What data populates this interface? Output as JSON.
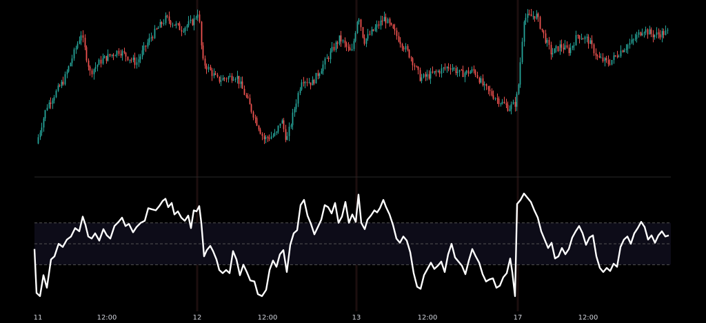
{
  "chart_data": [
    {
      "type": "candlestick",
      "pane": "price",
      "title": "",
      "y_axis": "hidden",
      "colors": {
        "up": "#26a69a",
        "down": "#ef5350",
        "background": "#000000"
      },
      "session_separators": [
        "12",
        "13",
        "17"
      ],
      "anchors": [
        [
          55,
          0.14
        ],
        [
          70,
          0.38
        ],
        [
          95,
          0.55
        ],
        [
          120,
          0.85
        ],
        [
          133,
          0.6
        ],
        [
          150,
          0.68
        ],
        [
          175,
          0.74
        ],
        [
          200,
          0.66
        ],
        [
          220,
          0.82
        ],
        [
          243,
          0.95
        ],
        [
          265,
          0.88
        ],
        [
          283,
          0.93
        ],
        [
          290,
          1.0
        ],
        [
          296,
          0.67
        ],
        [
          318,
          0.55
        ],
        [
          345,
          0.58
        ],
        [
          360,
          0.43
        ],
        [
          385,
          0.17
        ],
        [
          403,
          0.2
        ],
        [
          410,
          0.3
        ],
        [
          418,
          0.16
        ],
        [
          440,
          0.56
        ],
        [
          455,
          0.53
        ],
        [
          470,
          0.64
        ],
        [
          495,
          0.82
        ],
        [
          512,
          0.72
        ],
        [
          522,
          0.98
        ],
        [
          530,
          0.8
        ],
        [
          560,
          0.95
        ],
        [
          580,
          0.82
        ],
        [
          598,
          0.7
        ],
        [
          612,
          0.56
        ],
        [
          625,
          0.58
        ],
        [
          640,
          0.61
        ],
        [
          655,
          0.64
        ],
        [
          670,
          0.59
        ],
        [
          690,
          0.61
        ],
        [
          705,
          0.5
        ],
        [
          723,
          0.43
        ],
        [
          740,
          0.37
        ],
        [
          750,
          0.4
        ],
        [
          754,
          0.5
        ],
        [
          762,
          0.95
        ],
        [
          780,
          0.97
        ],
        [
          790,
          0.85
        ],
        [
          802,
          0.72
        ],
        [
          815,
          0.77
        ],
        [
          828,
          0.74
        ],
        [
          840,
          0.84
        ],
        [
          855,
          0.81
        ],
        [
          870,
          0.69
        ],
        [
          885,
          0.66
        ],
        [
          905,
          0.75
        ],
        [
          920,
          0.8
        ],
        [
          935,
          0.88
        ],
        [
          950,
          0.84
        ],
        [
          972,
          0.86
        ]
      ]
    },
    {
      "type": "line",
      "pane": "oscillator",
      "title": "",
      "ylim": [
        0,
        100
      ],
      "levels": [
        70,
        50,
        30
      ],
      "colors": {
        "line": "#ffffff",
        "band": "#0d0c18",
        "level": "#555555"
      },
      "points": [
        [
          50,
          45
        ],
        [
          53,
          3
        ],
        [
          58,
          0
        ],
        [
          63,
          20
        ],
        [
          68,
          8
        ],
        [
          74,
          35
        ],
        [
          79,
          38
        ],
        [
          85,
          50
        ],
        [
          91,
          47
        ],
        [
          97,
          54
        ],
        [
          103,
          57
        ],
        [
          109,
          65
        ],
        [
          115,
          62
        ],
        [
          120,
          76
        ],
        [
          124,
          68
        ],
        [
          128,
          57
        ],
        [
          133,
          55
        ],
        [
          138,
          60
        ],
        [
          144,
          53
        ],
        [
          150,
          64
        ],
        [
          155,
          58
        ],
        [
          160,
          55
        ],
        [
          166,
          67
        ],
        [
          172,
          71
        ],
        [
          177,
          75
        ],
        [
          182,
          67
        ],
        [
          187,
          69
        ],
        [
          193,
          61
        ],
        [
          198,
          66
        ],
        [
          204,
          70
        ],
        [
          210,
          72
        ],
        [
          215,
          84
        ],
        [
          220,
          83
        ],
        [
          226,
          82
        ],
        [
          231,
          86
        ],
        [
          236,
          91
        ],
        [
          240,
          93
        ],
        [
          244,
          85
        ],
        [
          249,
          89
        ],
        [
          253,
          78
        ],
        [
          258,
          81
        ],
        [
          263,
          75
        ],
        [
          268,
          72
        ],
        [
          273,
          77
        ],
        [
          277,
          65
        ],
        [
          281,
          82
        ],
        [
          285,
          81
        ],
        [
          289,
          86
        ],
        [
          292,
          70
        ],
        [
          296,
          38
        ],
        [
          300,
          44
        ],
        [
          305,
          48
        ],
        [
          309,
          43
        ],
        [
          314,
          35
        ],
        [
          318,
          25
        ],
        [
          323,
          22
        ],
        [
          328,
          25
        ],
        [
          333,
          22
        ],
        [
          338,
          43
        ],
        [
          343,
          35
        ],
        [
          348,
          20
        ],
        [
          353,
          30
        ],
        [
          358,
          23
        ],
        [
          363,
          15
        ],
        [
          369,
          14
        ],
        [
          374,
          2
        ],
        [
          380,
          0
        ],
        [
          386,
          6
        ],
        [
          391,
          25
        ],
        [
          396,
          34
        ],
        [
          401,
          28
        ],
        [
          406,
          40
        ],
        [
          411,
          44
        ],
        [
          416,
          23
        ],
        [
          421,
          49
        ],
        [
          426,
          60
        ],
        [
          431,
          63
        ],
        [
          436,
          87
        ],
        [
          441,
          92
        ],
        [
          446,
          77
        ],
        [
          451,
          69
        ],
        [
          456,
          59
        ],
        [
          461,
          66
        ],
        [
          466,
          73
        ],
        [
          471,
          87
        ],
        [
          476,
          85
        ],
        [
          481,
          79
        ],
        [
          486,
          89
        ],
        [
          491,
          70
        ],
        [
          496,
          76
        ],
        [
          501,
          90
        ],
        [
          506,
          70
        ],
        [
          511,
          78
        ],
        [
          516,
          71
        ],
        [
          520,
          97
        ],
        [
          524,
          70
        ],
        [
          529,
          64
        ],
        [
          533,
          73
        ],
        [
          538,
          77
        ],
        [
          543,
          82
        ],
        [
          547,
          80
        ],
        [
          551,
          84
        ],
        [
          556,
          92
        ],
        [
          560,
          85
        ],
        [
          565,
          78
        ],
        [
          570,
          68
        ],
        [
          575,
          55
        ],
        [
          580,
          51
        ],
        [
          585,
          57
        ],
        [
          590,
          53
        ],
        [
          595,
          42
        ],
        [
          600,
          22
        ],
        [
          605,
          9
        ],
        [
          610,
          7
        ],
        [
          615,
          20
        ],
        [
          620,
          26
        ],
        [
          625,
          32
        ],
        [
          630,
          26
        ],
        [
          635,
          29
        ],
        [
          640,
          33
        ],
        [
          645,
          23
        ],
        [
          650,
          40
        ],
        [
          655,
          50
        ],
        [
          660,
          37
        ],
        [
          665,
          33
        ],
        [
          670,
          29
        ],
        [
          675,
          21
        ],
        [
          680,
          34
        ],
        [
          685,
          45
        ],
        [
          690,
          38
        ],
        [
          695,
          32
        ],
        [
          700,
          21
        ],
        [
          705,
          14
        ],
        [
          710,
          16
        ],
        [
          715,
          17
        ],
        [
          720,
          8
        ],
        [
          725,
          10
        ],
        [
          730,
          18
        ],
        [
          735,
          22
        ],
        [
          740,
          36
        ],
        [
          743,
          23
        ],
        [
          747,
          0
        ],
        [
          750,
          88
        ],
        [
          755,
          92
        ],
        [
          760,
          98
        ],
        [
          765,
          94
        ],
        [
          770,
          90
        ],
        [
          775,
          82
        ],
        [
          780,
          75
        ],
        [
          785,
          62
        ],
        [
          790,
          54
        ],
        [
          795,
          46
        ],
        [
          800,
          51
        ],
        [
          805,
          36
        ],
        [
          810,
          38
        ],
        [
          815,
          46
        ],
        [
          820,
          40
        ],
        [
          825,
          45
        ],
        [
          830,
          56
        ],
        [
          835,
          62
        ],
        [
          840,
          67
        ],
        [
          845,
          60
        ],
        [
          850,
          49
        ],
        [
          855,
          56
        ],
        [
          860,
          58
        ],
        [
          865,
          38
        ],
        [
          870,
          27
        ],
        [
          875,
          23
        ],
        [
          880,
          27
        ],
        [
          885,
          24
        ],
        [
          890,
          31
        ],
        [
          895,
          28
        ],
        [
          900,
          47
        ],
        [
          905,
          54
        ],
        [
          910,
          57
        ],
        [
          915,
          50
        ],
        [
          920,
          60
        ],
        [
          925,
          65
        ],
        [
          930,
          71
        ],
        [
          935,
          66
        ],
        [
          940,
          54
        ],
        [
          945,
          58
        ],
        [
          950,
          51
        ],
        [
          955,
          58
        ],
        [
          960,
          62
        ],
        [
          965,
          57
        ],
        [
          970,
          58
        ]
      ]
    }
  ],
  "x_axis": {
    "ticks": [
      {
        "label": "11",
        "x": 55
      },
      {
        "label": "12:00",
        "x": 155
      },
      {
        "label": "12",
        "x": 286
      },
      {
        "label": "12:00",
        "x": 388
      },
      {
        "label": "13",
        "x": 517
      },
      {
        "label": "12:00",
        "x": 620
      },
      {
        "label": "17",
        "x": 751
      },
      {
        "label": "12:00",
        "x": 853
      }
    ]
  }
}
